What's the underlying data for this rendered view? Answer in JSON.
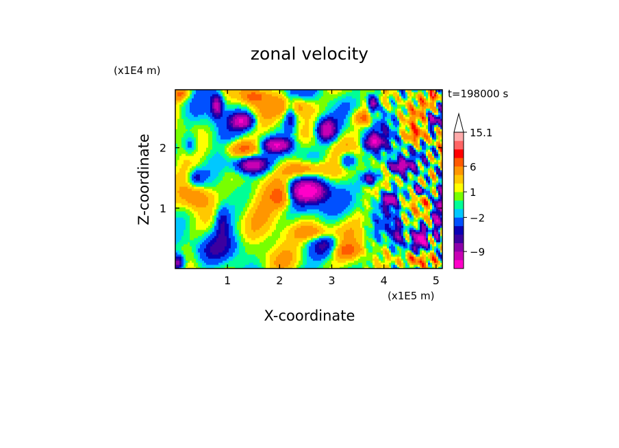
{
  "chart_data": {
    "type": "heatmap",
    "title": "zonal velocity",
    "xlabel": "X-coordinate",
    "ylabel": "Z-coordinate",
    "x_scale_label": "(x1E5 m)",
    "y_scale_label": "(x1E4 m)",
    "time_label": "t=198000 s",
    "xlim": [
      0,
      5.12
    ],
    "ylim": [
      0,
      2.96
    ],
    "x_ticks": [
      1,
      2,
      3,
      4,
      5
    ],
    "x_tick_labels": [
      "1",
      "2",
      "3",
      "4",
      "5"
    ],
    "y_ticks": [
      1,
      2
    ],
    "y_tick_labels": [
      "1",
      "2"
    ],
    "colorbar": {
      "levels": [
        -16,
        -12.5,
        -9,
        -7,
        -5.5,
        -4,
        -2,
        -1,
        0,
        1,
        2,
        3.5,
        6,
        8,
        10.5,
        13,
        15.1
      ],
      "colors": [
        "#ff00c8",
        "#c800b4",
        "#8c00aa",
        "#3c00a0",
        "#0a00b4",
        "#0050ff",
        "#00c8ff",
        "#00ff96",
        "#78ff00",
        "#ffff00",
        "#ffc800",
        "#ff9600",
        "#ff5a00",
        "#ff0000",
        "#ff6464",
        "#ffaaaa"
      ],
      "tick_labels": [
        {
          "value": 15.1,
          "label": "15.1"
        },
        {
          "value": 6,
          "label": "6"
        },
        {
          "value": 1,
          "label": "1"
        },
        {
          "value": -2,
          "label": "−2"
        },
        {
          "value": -9,
          "label": "−9"
        }
      ],
      "extend_max": true
    },
    "features": [
      {
        "x": 2.55,
        "z": 1.28,
        "amp": -14,
        "sx": 0.26,
        "sz": 0.12
      },
      {
        "x": 2.65,
        "z": 1.02,
        "amp": -3,
        "sx": 0.45,
        "sz": 0.12
      },
      {
        "x": 1.45,
        "z": 1.72,
        "amp": -12,
        "sx": 0.22,
        "sz": 0.1
      },
      {
        "x": 1.95,
        "z": 2.05,
        "amp": -11,
        "sx": 0.2,
        "sz": 0.08
      },
      {
        "x": 2.9,
        "z": 2.3,
        "amp": -12,
        "sx": 0.14,
        "sz": 0.13
      },
      {
        "x": 1.3,
        "z": 2.45,
        "amp": -11,
        "sx": 0.15,
        "sz": 0.09
      },
      {
        "x": 0.8,
        "z": 2.7,
        "amp": -9,
        "sx": 0.08,
        "sz": 0.14
      },
      {
        "x": 2.2,
        "z": 2.55,
        "amp": -6,
        "sx": 0.08,
        "sz": 0.2
      },
      {
        "x": 3.3,
        "z": 1.8,
        "amp": -8,
        "sx": 0.12,
        "sz": 0.1
      },
      {
        "x": 3.75,
        "z": 1.5,
        "amp": -9,
        "sx": 0.12,
        "sz": 0.08
      },
      {
        "x": 4.1,
        "z": 1.15,
        "amp": -10,
        "sx": 0.1,
        "sz": 0.08
      },
      {
        "x": 3.8,
        "z": 2.1,
        "amp": -9,
        "sx": 0.12,
        "sz": 0.08
      },
      {
        "x": 4.3,
        "z": 1.7,
        "amp": -11,
        "sx": 0.15,
        "sz": 0.08
      },
      {
        "x": 4.7,
        "z": 1.3,
        "amp": -10,
        "sx": 0.12,
        "sz": 0.07
      },
      {
        "x": 3.8,
        "z": 2.75,
        "amp": -11,
        "sx": 0.07,
        "sz": 0.12
      },
      {
        "x": 4.95,
        "z": 2.45,
        "amp": -10,
        "sx": 0.1,
        "sz": 0.09
      },
      {
        "x": 4.7,
        "z": 0.5,
        "amp": -12,
        "sx": 0.08,
        "sz": 0.12
      },
      {
        "x": 5.05,
        "z": 0.9,
        "amp": -13,
        "sx": 0.07,
        "sz": 0.25
      },
      {
        "x": 4.25,
        "z": 0.55,
        "amp": -8,
        "sx": 0.06,
        "sz": 0.15
      },
      {
        "x": 0.05,
        "z": 0.1,
        "amp": -10,
        "sx": 0.1,
        "sz": 0.1
      },
      {
        "x": 0.9,
        "z": 0.8,
        "amp": -5,
        "sx": 0.1,
        "sz": 0.2
      },
      {
        "x": 0.3,
        "z": 2.05,
        "amp": -5,
        "sx": 0.1,
        "sz": 0.12
      },
      {
        "x": 0.4,
        "z": 1.5,
        "amp": -5,
        "sx": 0.1,
        "sz": 0.1
      },
      {
        "x": 2.9,
        "z": 0.4,
        "amp": -5,
        "sx": 0.18,
        "sz": 0.14
      },
      {
        "x": 0.5,
        "z": 0.3,
        "amp": -3,
        "sx": 0.3,
        "sz": 0.2
      },
      {
        "x": 2.5,
        "z": 1.65,
        "amp": 8,
        "sx": 0.3,
        "sz": 0.1
      },
      {
        "x": 2.7,
        "z": 0.6,
        "amp": 6,
        "sx": 0.3,
        "sz": 0.1
      },
      {
        "x": 2.3,
        "z": 2.7,
        "amp": 7,
        "sx": 0.25,
        "sz": 0.12
      },
      {
        "x": 1.3,
        "z": 2.0,
        "amp": 6,
        "sx": 0.25,
        "sz": 0.1
      },
      {
        "x": 0.4,
        "z": 1.2,
        "amp": 6,
        "sx": 0.2,
        "sz": 0.15
      },
      {
        "x": 3.6,
        "z": 2.5,
        "amp": 7,
        "sx": 0.15,
        "sz": 0.1
      },
      {
        "x": 2.05,
        "z": 1.2,
        "amp": 6,
        "sx": 0.15,
        "sz": 0.15
      },
      {
        "x": 3.3,
        "z": 0.3,
        "amp": 6,
        "sx": 0.2,
        "sz": 0.1
      },
      {
        "x": 4.6,
        "z": 0.15,
        "amp": 8,
        "sx": 0.2,
        "sz": 0.08
      },
      {
        "x": 4.6,
        "z": 2.2,
        "amp": 6,
        "sx": 0.12,
        "sz": 0.08
      },
      {
        "x": 4.95,
        "z": 2.85,
        "amp": 6,
        "sx": 0.12,
        "sz": 0.08
      },
      {
        "x": 0.1,
        "z": 2.9,
        "amp": 6,
        "sx": 0.12,
        "sz": 0.08
      },
      {
        "x": 1.5,
        "z": 2.85,
        "amp": 6,
        "sx": 0.15,
        "sz": 0.08
      },
      {
        "x": 1.5,
        "z": 0.85,
        "amp": 2.5,
        "sx": 0.5,
        "sz": 0.3
      },
      {
        "x": 1.8,
        "z": 0.15,
        "amp": 2,
        "sx": 0.6,
        "sz": 0.15
      },
      {
        "x": 1.0,
        "z": 0.35,
        "amp": -2.5,
        "sx": 0.35,
        "sz": 0.18
      }
    ]
  }
}
